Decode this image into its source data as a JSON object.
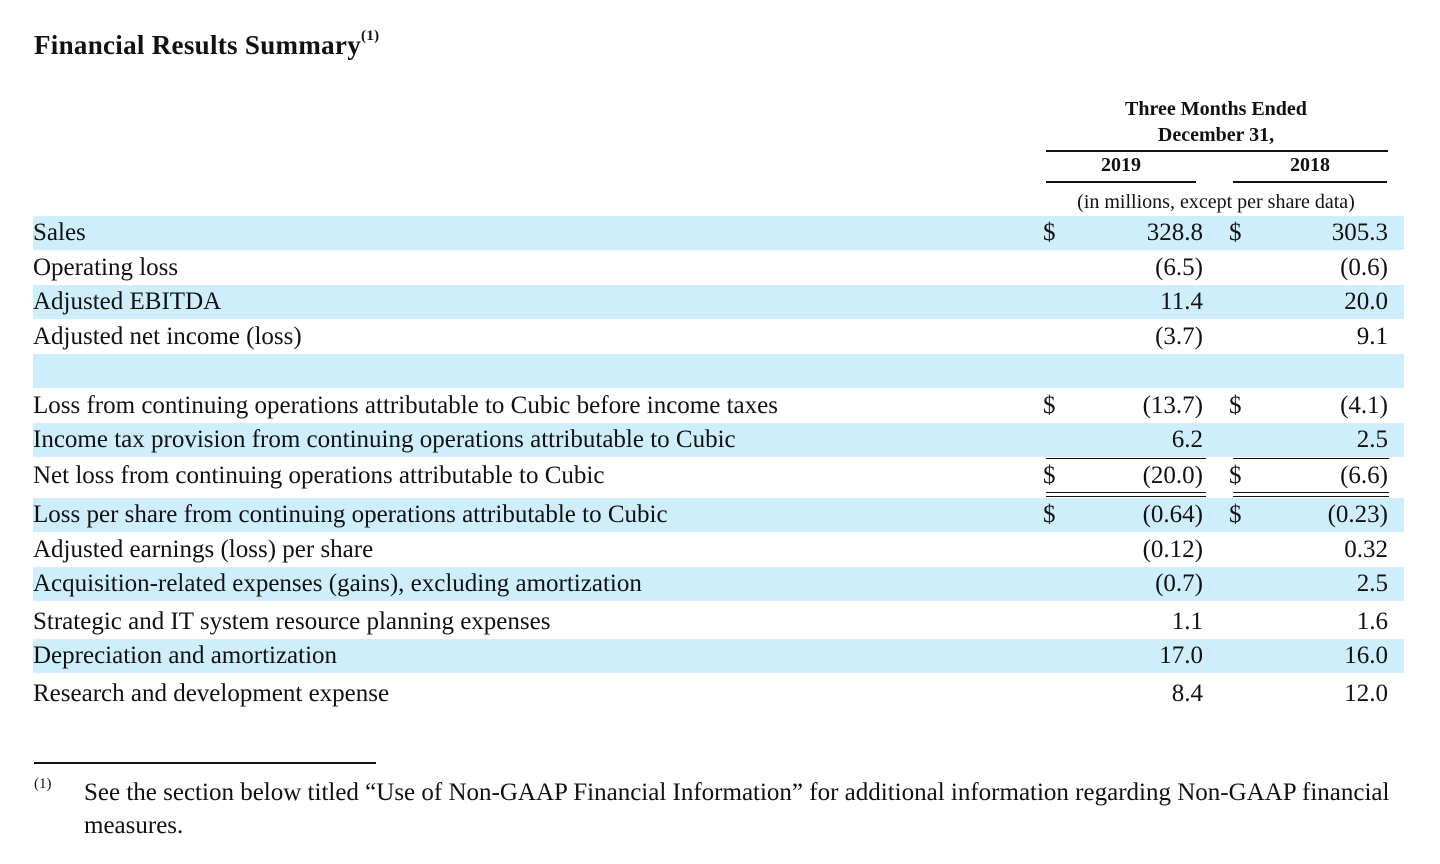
{
  "title": "Financial Results Summary",
  "title_note": "(1)",
  "header": {
    "period_line1": "Three Months Ended",
    "period_line2": "December 31,",
    "year1": "2019",
    "year2": "2018",
    "units": "(in millions, except per share data)"
  },
  "rows": [
    {
      "label": "Sales",
      "cur1": "$",
      "v2019": "328.8",
      "cur2": "$",
      "v2018": "305.3"
    },
    {
      "label": "Operating loss",
      "cur1": "",
      "v2019": "(6.5)",
      "cur2": "",
      "v2018": "(0.6)"
    },
    {
      "label": "Adjusted EBITDA",
      "cur1": "",
      "v2019": "11.4",
      "cur2": "",
      "v2018": "20.0"
    },
    {
      "label": "Adjusted net income (loss)",
      "cur1": "",
      "v2019": "(3.7)",
      "cur2": "",
      "v2018": "9.1"
    },
    {
      "label": "",
      "cur1": "",
      "v2019": "",
      "cur2": "",
      "v2018": ""
    },
    {
      "label": "Loss from continuing operations attributable to Cubic before income taxes",
      "cur1": "$",
      "v2019": "(13.7)",
      "cur2": "$",
      "v2018": "(4.1)"
    },
    {
      "label": "Income tax provision from continuing operations attributable to Cubic",
      "cur1": "",
      "v2019": "6.2",
      "cur2": "",
      "v2018": "2.5"
    },
    {
      "label": "Net loss from continuing operations attributable to Cubic",
      "cur1": "$",
      "v2019": "(20.0)",
      "cur2": "$",
      "v2018": "(6.6)"
    },
    {
      "label": "Loss per share from continuing operations attributable to Cubic",
      "cur1": "$",
      "v2019": "(0.64)",
      "cur2": "$",
      "v2018": "(0.23)"
    },
    {
      "label": "Adjusted earnings (loss) per share",
      "cur1": "",
      "v2019": "(0.12)",
      "cur2": "",
      "v2018": "0.32"
    },
    {
      "label": "Acquisition-related expenses (gains), excluding amortization",
      "cur1": "",
      "v2019": "(0.7)",
      "cur2": "",
      "v2018": "2.5"
    },
    {
      "label": "Strategic and IT system resource planning expenses",
      "cur1": "",
      "v2019": "1.1",
      "cur2": "",
      "v2018": "1.6"
    },
    {
      "label": "Depreciation and amortization",
      "cur1": "",
      "v2019": "17.0",
      "cur2": "",
      "v2018": "16.0"
    },
    {
      "label": "Research and development expense",
      "cur1": "",
      "v2019": "8.4",
      "cur2": "",
      "v2018": "12.0"
    }
  ],
  "footnote": {
    "mark": "(1)",
    "text": "See the section below titled “Use of Non-GAAP Financial Information” for additional information regarding Non-GAAP financial measures."
  }
}
